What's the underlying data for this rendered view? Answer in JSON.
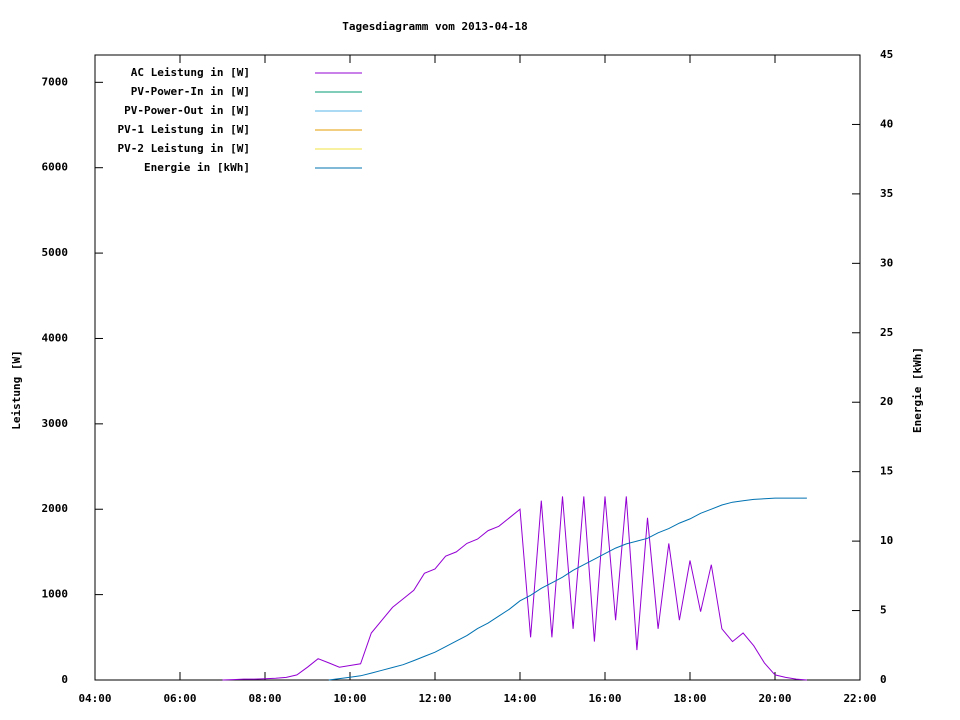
{
  "chart_data": {
    "type": "line",
    "title": "Tagesdiagramm vom 2013-04-18",
    "ylabel": "Leistung [W]",
    "y2label": "Energie [kWh]",
    "legend": "top-left",
    "x": [
      7.0,
      7.25,
      7.5,
      7.75,
      8.0,
      8.25,
      8.5,
      8.75,
      9.0,
      9.25,
      9.5,
      9.75,
      10.0,
      10.25,
      10.5,
      10.75,
      11.0,
      11.25,
      11.5,
      11.75,
      12.0,
      12.25,
      12.5,
      12.75,
      13.0,
      13.25,
      13.5,
      13.75,
      14.0,
      14.25,
      14.5,
      14.75,
      15.0,
      15.25,
      15.5,
      15.75,
      16.0,
      16.25,
      16.5,
      16.75,
      17.0,
      17.25,
      17.5,
      17.75,
      18.0,
      18.25,
      18.5,
      18.75,
      19.0,
      19.25,
      19.5,
      19.75,
      20.0,
      20.25,
      20.5,
      20.75,
      21.0
    ],
    "xlim": [
      4,
      22
    ],
    "xticks": [
      {
        "value": 4,
        "label": "04:00"
      },
      {
        "value": 6,
        "label": "06:00"
      },
      {
        "value": 8,
        "label": "08:00"
      },
      {
        "value": 10,
        "label": "10:00"
      },
      {
        "value": 12,
        "label": "12:00"
      },
      {
        "value": 14,
        "label": "14:00"
      },
      {
        "value": 16,
        "label": "16:00"
      },
      {
        "value": 18,
        "label": "18:00"
      },
      {
        "value": 20,
        "label": "20:00"
      },
      {
        "value": 22,
        "label": "22:00"
      }
    ],
    "ylim": [
      0,
      7320
    ],
    "yticks": [
      0,
      1000,
      2000,
      3000,
      4000,
      5000,
      6000,
      7000
    ],
    "y2lim": [
      0,
      45
    ],
    "y2ticks": [
      0,
      5,
      10,
      15,
      20,
      25,
      30,
      35,
      40,
      45
    ],
    "series": [
      {
        "name": "AC Leistung in [W]",
        "color": "#9400d3",
        "values": [
          0,
          5,
          10,
          10,
          15,
          20,
          30,
          60,
          150,
          250,
          200,
          150,
          170,
          190,
          550,
          700,
          850,
          950,
          1050,
          1250,
          1300,
          1450,
          1500,
          1600,
          1650,
          1750,
          1800,
          1900,
          2000,
          500,
          2100,
          500,
          2150,
          600,
          2150,
          450,
          2150,
          700,
          2150,
          350,
          1900,
          600,
          1600,
          700,
          1400,
          800,
          1350,
          600,
          450,
          550,
          400,
          200,
          60,
          30,
          10,
          0,
          null
        ]
      },
      {
        "name": "PV-Power-In in [W]",
        "color": "#009e73",
        "values": [
          null,
          null,
          null,
          null,
          null,
          null,
          null,
          null,
          null,
          null,
          null,
          null,
          null,
          null,
          null,
          null,
          null,
          null,
          null,
          null,
          null,
          null,
          null,
          null,
          null,
          null,
          null,
          null,
          null,
          null,
          null,
          null,
          null,
          null,
          null,
          null,
          null,
          null,
          null,
          null,
          null,
          null,
          null,
          null,
          null,
          null,
          null,
          null,
          null,
          null,
          null,
          null,
          null,
          null,
          null,
          null,
          null
        ]
      },
      {
        "name": "PV-Power-Out in [W]",
        "color": "#56b4e9",
        "values": [
          null,
          null,
          null,
          null,
          null,
          null,
          null,
          null,
          null,
          null,
          null,
          null,
          null,
          null,
          null,
          null,
          null,
          null,
          null,
          null,
          null,
          null,
          null,
          null,
          null,
          null,
          null,
          null,
          null,
          null,
          null,
          null,
          null,
          null,
          null,
          null,
          null,
          null,
          null,
          null,
          null,
          null,
          null,
          null,
          null,
          null,
          null,
          null,
          null,
          null,
          null,
          null,
          null,
          null,
          null,
          null,
          null
        ]
      },
      {
        "name": "PV-1 Leistung in [W]",
        "color": "#e69f00",
        "values": [
          null,
          null,
          null,
          null,
          null,
          null,
          null,
          null,
          null,
          null,
          null,
          null,
          null,
          null,
          null,
          null,
          null,
          null,
          null,
          null,
          null,
          null,
          null,
          null,
          null,
          null,
          null,
          null,
          null,
          null,
          null,
          null,
          null,
          null,
          null,
          null,
          null,
          null,
          null,
          null,
          null,
          null,
          null,
          null,
          null,
          null,
          null,
          null,
          null,
          null,
          null,
          null,
          null,
          null,
          null,
          null,
          null
        ]
      },
      {
        "name": "PV-2 Leistung in [W]",
        "color": "#f0e442",
        "values": [
          null,
          null,
          null,
          null,
          null,
          null,
          null,
          null,
          null,
          null,
          null,
          null,
          null,
          null,
          null,
          null,
          null,
          null,
          null,
          null,
          null,
          null,
          null,
          null,
          null,
          null,
          null,
          null,
          null,
          null,
          null,
          null,
          null,
          null,
          null,
          null,
          null,
          null,
          null,
          null,
          null,
          null,
          null,
          null,
          null,
          null,
          null,
          null,
          null,
          null,
          null,
          null,
          null,
          null,
          null,
          null,
          null
        ]
      },
      {
        "name": "Energie in [kWh]",
        "color": "#0072b2",
        "axis": "y2",
        "values": [
          null,
          null,
          null,
          null,
          null,
          null,
          null,
          null,
          null,
          null,
          0,
          0.1,
          0.2,
          0.3,
          0.5,
          0.7,
          0.9,
          1.1,
          1.4,
          1.7,
          2.0,
          2.4,
          2.8,
          3.2,
          3.7,
          4.1,
          4.6,
          5.1,
          5.7,
          6.1,
          6.6,
          7.0,
          7.4,
          7.9,
          8.3,
          8.7,
          9.1,
          9.5,
          9.8,
          10.0,
          10.2,
          10.6,
          10.9,
          11.3,
          11.6,
          12.0,
          12.3,
          12.6,
          12.8,
          12.9,
          13.0,
          13.05,
          13.1,
          13.1,
          13.1,
          13.1,
          null
        ]
      }
    ]
  }
}
